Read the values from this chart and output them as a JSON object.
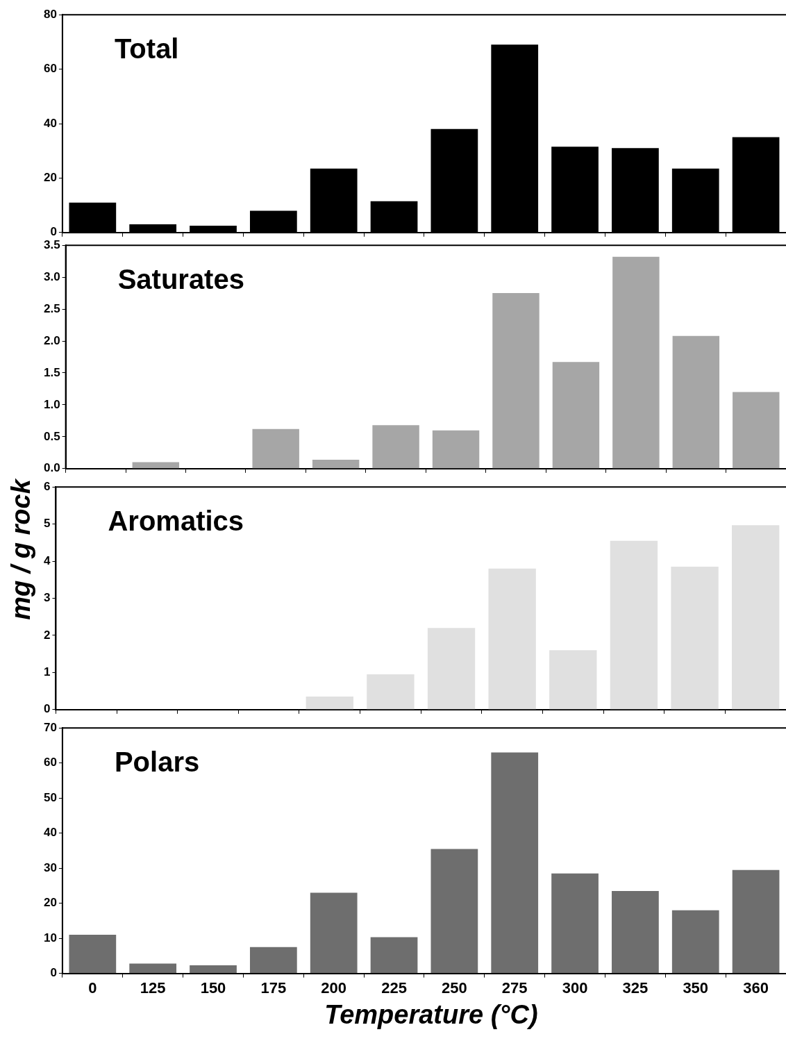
{
  "chart_data": [
    {
      "type": "bar",
      "title": "Total",
      "categories": [
        "0",
        "125",
        "150",
        "175",
        "200",
        "225",
        "250",
        "275",
        "300",
        "325",
        "350",
        "360"
      ],
      "values": [
        11,
        3,
        2.5,
        8,
        23.5,
        11.5,
        38,
        69,
        31.5,
        31,
        23.5,
        35
      ],
      "color": "#000000",
      "ylim": [
        0,
        80
      ],
      "yticks": [
        0,
        20,
        40,
        60,
        80
      ],
      "tick_labels": "y"
    },
    {
      "type": "bar",
      "title": "Saturates",
      "categories": [
        "0",
        "125",
        "150",
        "175",
        "200",
        "225",
        "250",
        "275",
        "300",
        "325",
        "350",
        "360"
      ],
      "values": [
        0,
        0.1,
        0,
        0.62,
        0.14,
        0.68,
        0.6,
        2.75,
        1.67,
        3.32,
        2.08,
        1.2
      ],
      "color": "#a6a6a6",
      "ylim": [
        0,
        3.5
      ],
      "yticks": [
        {
          "value": 0,
          "label": "0.0"
        },
        {
          "value": 0.5,
          "label": "0.5"
        },
        {
          "value": 1,
          "label": "1.0"
        },
        {
          "value": 1.5,
          "label": "1.5"
        },
        {
          "value": 2,
          "label": "2.0"
        },
        {
          "value": 2.5,
          "label": "2.5"
        },
        {
          "value": 3,
          "label": "3.0"
        },
        {
          "value": 3.5,
          "label": "3.5"
        }
      ],
      "tick_labels": "y"
    },
    {
      "type": "bar",
      "title": "Aromatics",
      "ylabel": "mg / g rock",
      "categories": [
        "0",
        "125",
        "150",
        "175",
        "200",
        "225",
        "250",
        "275",
        "300",
        "325",
        "350",
        "360"
      ],
      "values": [
        0,
        0,
        0,
        0,
        0.35,
        0.95,
        2.2,
        3.8,
        1.6,
        4.55,
        3.85,
        4.97
      ],
      "color": "#e0e0e0",
      "ylim": [
        0,
        6
      ],
      "yticks": [
        0,
        1,
        2,
        3,
        4,
        5,
        6
      ],
      "tick_labels": "y"
    },
    {
      "type": "bar",
      "title": "Polars",
      "xlabel": "Temperature (°C)",
      "categories": [
        "0",
        "125",
        "150",
        "175",
        "200",
        "225",
        "250",
        "275",
        "300",
        "325",
        "350",
        "360"
      ],
      "values": [
        11,
        2.8,
        2.3,
        7.5,
        23,
        10.3,
        35.5,
        63,
        28.5,
        23.5,
        18,
        29.5
      ],
      "color": "#6e6e6e",
      "ylim": [
        0,
        70
      ],
      "yticks": [
        0,
        10,
        20,
        30,
        40,
        50,
        60,
        70
      ]
    }
  ]
}
